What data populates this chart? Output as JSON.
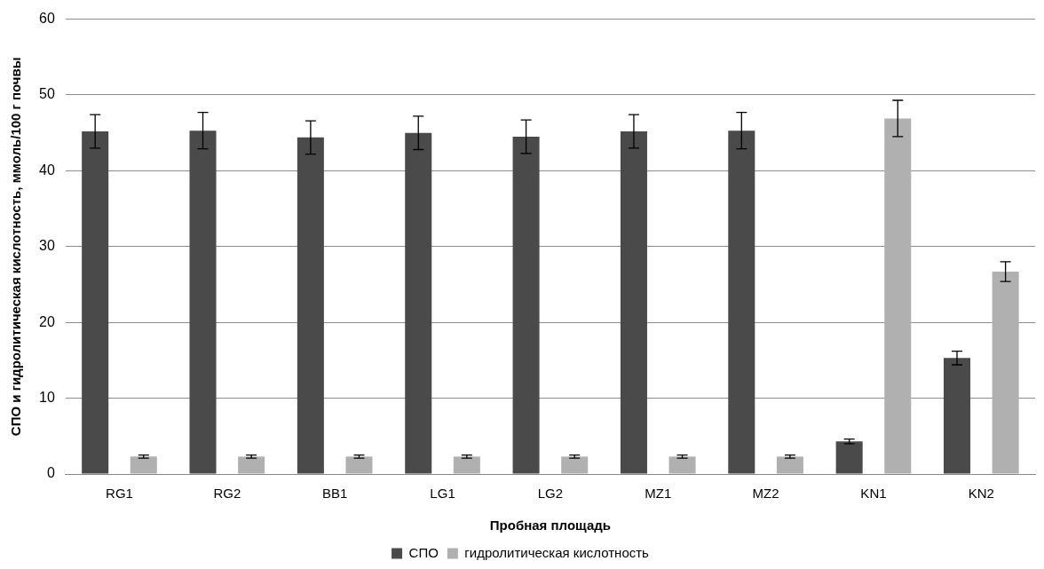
{
  "chart_data": {
    "type": "bar",
    "xlabel": "Пробная площадь",
    "ylabel": "СПО и гидролитическая кислотность, ммоль/100 г почвы",
    "categories": [
      "RG1",
      "RG2",
      "BB1",
      "LG1",
      "LG2",
      "MZ1",
      "MZ2",
      "KN1",
      "KN2"
    ],
    "series": [
      {
        "name": "СПО",
        "color": "#4a4a4a",
        "values": [
          45.2,
          45.3,
          44.4,
          45.0,
          44.5,
          45.2,
          45.3,
          4.3,
          15.3
        ],
        "errors": [
          2.2,
          2.4,
          2.2,
          2.2,
          2.2,
          2.2,
          2.4,
          0.3,
          0.9
        ]
      },
      {
        "name": "гидролитическая кислотность",
        "color": "#b0b0b0",
        "values": [
          2.3,
          2.3,
          2.3,
          2.3,
          2.3,
          2.3,
          2.3,
          46.9,
          26.7
        ],
        "errors": [
          0.2,
          0.2,
          0.2,
          0.2,
          0.2,
          0.2,
          0.2,
          2.4,
          1.3
        ]
      }
    ],
    "ylim": [
      0,
      60
    ],
    "yticks": [
      0,
      10,
      20,
      30,
      40,
      50,
      60
    ],
    "grid": "y",
    "legend": "bottom"
  }
}
